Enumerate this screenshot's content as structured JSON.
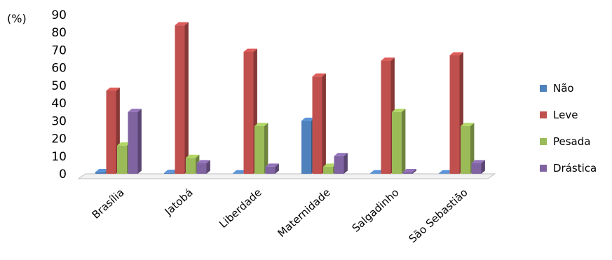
{
  "chart_data": {
    "type": "bar",
    "ylabel": "(%)",
    "ylim": [
      0,
      90
    ],
    "yticks": [
      0,
      10,
      20,
      30,
      40,
      50,
      60,
      70,
      80,
      90
    ],
    "categories": [
      "Brasília",
      "Jatobá",
      "Liberdade",
      "Maternidade",
      "Salgadinho",
      "São Sebastião"
    ],
    "series": [
      {
        "name": "Não",
        "color": "#4f81bd",
        "values": [
          1,
          0.5,
          0.3,
          30,
          0.3,
          0.3
        ]
      },
      {
        "name": "Leve",
        "color": "#c0504d",
        "values": [
          47,
          84,
          69,
          55,
          64,
          67
        ]
      },
      {
        "name": "Pesada",
        "color": "#9bbb59",
        "values": [
          16,
          9,
          27,
          4,
          35,
          27
        ]
      },
      {
        "name": "Drástica",
        "color": "#8064a2",
        "values": [
          35,
          6,
          4,
          10,
          1,
          6
        ]
      }
    ],
    "legend_position": "right"
  }
}
